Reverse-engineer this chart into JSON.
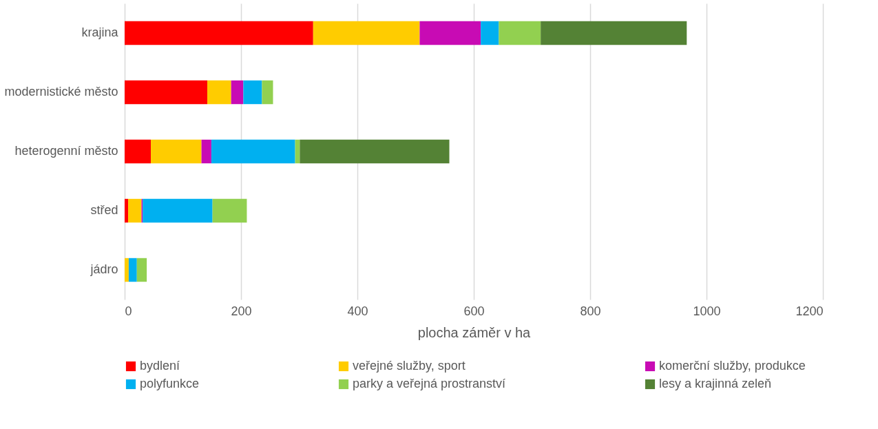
{
  "chart_data": {
    "type": "bar",
    "orientation": "horizontal",
    "stacked": true,
    "xlabel": "plocha záměr v ha",
    "categories": [
      "krajina",
      "modernistické město",
      "heterogenní město",
      "střed",
      "jádro"
    ],
    "series": [
      {
        "name": "bydlení",
        "color": "#ff0000",
        "values": [
          324,
          142,
          45,
          6,
          0
        ]
      },
      {
        "name": "veřejné služby, sport",
        "color": "#ffcc00",
        "values": [
          183,
          41,
          87,
          23,
          7
        ]
      },
      {
        "name": "komerční služby, produkce",
        "color": "#c80bb4",
        "values": [
          105,
          21,
          17,
          2,
          0
        ]
      },
      {
        "name": "polyfunkce",
        "color": "#00b0f0",
        "values": [
          31,
          32,
          144,
          120,
          14
        ]
      },
      {
        "name": "parky a veřejná prostranství",
        "color": "#92d050",
        "values": [
          72,
          19,
          8,
          59,
          17
        ]
      },
      {
        "name": "lesy a krajinná zeleň",
        "color": "#548235",
        "values": [
          251,
          0,
          257,
          0,
          0
        ]
      }
    ],
    "xlim": [
      0,
      1200
    ],
    "xticks": [
      0,
      200,
      400,
      600,
      800,
      1000,
      1200
    ],
    "grid": "x",
    "legend": "bottom"
  }
}
